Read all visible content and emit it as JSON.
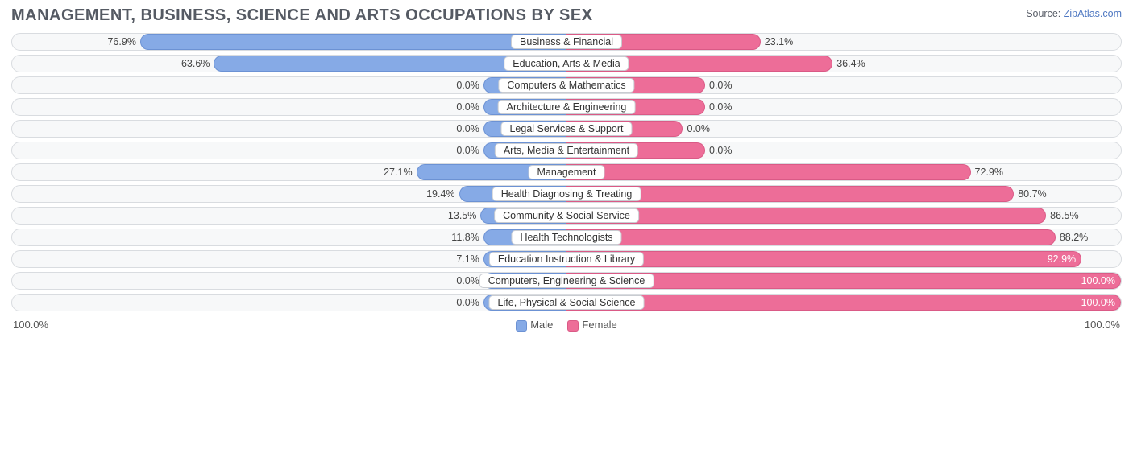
{
  "title": "MANAGEMENT, BUSINESS, SCIENCE AND ARTS OCCUPATIONS BY SEX",
  "source_prefix": "Source: ",
  "source_link": "ZipAtlas.com",
  "axis_left": "100.0%",
  "axis_right": "100.0%",
  "legend": {
    "male": "Male",
    "female": "Female"
  },
  "colors": {
    "male_fill": "#86aae6",
    "male_border": "#6c92d4",
    "female_fill": "#ed6d98",
    "female_border": "#da5a86",
    "track_bg": "#f7f8f9",
    "track_border": "#d9dce0",
    "text": "#444444"
  },
  "chart": {
    "type": "diverging-bar",
    "xlim": [
      -100,
      100
    ],
    "min_bar_pct": 15,
    "rows": [
      {
        "label": "Business & Financial",
        "male": 76.9,
        "female": 23.1,
        "male_label": "76.9%",
        "female_label": "23.1%",
        "female_bar": 35
      },
      {
        "label": "Education, Arts & Media",
        "male": 63.6,
        "female": 36.4,
        "male_label": "63.6%",
        "female_label": "36.4%",
        "female_bar": 48
      },
      {
        "label": "Computers & Mathematics",
        "male": 0.0,
        "female": 0.0,
        "male_label": "0.0%",
        "female_label": "0.0%",
        "male_bar": 15,
        "female_bar": 25
      },
      {
        "label": "Architecture & Engineering",
        "male": 0.0,
        "female": 0.0,
        "male_label": "0.0%",
        "female_label": "0.0%",
        "male_bar": 15,
        "female_bar": 25
      },
      {
        "label": "Legal Services & Support",
        "male": 0.0,
        "female": 0.0,
        "male_label": "0.0%",
        "female_label": "0.0%",
        "male_bar": 15,
        "female_bar": 21
      },
      {
        "label": "Arts, Media & Entertainment",
        "male": 0.0,
        "female": 0.0,
        "male_label": "0.0%",
        "female_label": "0.0%",
        "male_bar": 15,
        "female_bar": 25
      },
      {
        "label": "Management",
        "male": 27.1,
        "female": 72.9,
        "male_label": "27.1%",
        "female_label": "72.9%"
      },
      {
        "label": "Health Diagnosing & Treating",
        "male": 19.4,
        "female": 80.7,
        "male_label": "19.4%",
        "female_label": "80.7%"
      },
      {
        "label": "Community & Social Service",
        "male": 13.5,
        "female": 86.5,
        "male_label": "13.5%",
        "female_label": "86.5%",
        "male_bar": 15.5
      },
      {
        "label": "Health Technologists",
        "male": 11.8,
        "female": 88.2,
        "male_label": "11.8%",
        "female_label": "88.2%",
        "male_bar": 15
      },
      {
        "label": "Education Instruction & Library",
        "male": 7.1,
        "female": 92.9,
        "male_label": "7.1%",
        "female_label": "92.9%",
        "male_bar": 15
      },
      {
        "label": "Computers, Engineering & Science",
        "male": 0.0,
        "female": 100.0,
        "male_label": "0.0%",
        "female_label": "100.0%",
        "male_bar": 15
      },
      {
        "label": "Life, Physical & Social Science",
        "male": 0.0,
        "female": 100.0,
        "male_label": "0.0%",
        "female_label": "100.0%",
        "male_bar": 15
      }
    ]
  }
}
